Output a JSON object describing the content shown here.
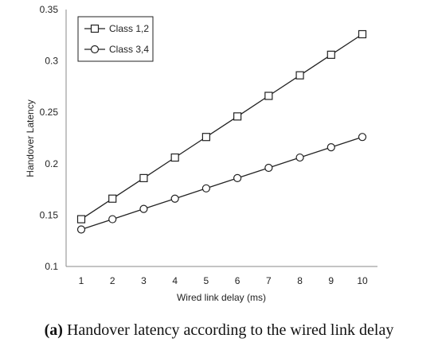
{
  "chart_data": {
    "type": "line",
    "categories": [
      "1",
      "2",
      "3",
      "4",
      "5",
      "6",
      "7",
      "8",
      "9",
      "10"
    ],
    "x": [
      1,
      2,
      3,
      4,
      5,
      6,
      7,
      8,
      9,
      10
    ],
    "series": [
      {
        "name": "Class 1,2",
        "marker": "square",
        "values": [
          0.146,
          0.166,
          0.186,
          0.206,
          0.226,
          0.246,
          0.266,
          0.286,
          0.306,
          0.326
        ]
      },
      {
        "name": "Class 3,4",
        "marker": "circle",
        "values": [
          0.136,
          0.146,
          0.156,
          0.166,
          0.176,
          0.186,
          0.196,
          0.206,
          0.216,
          0.226
        ]
      }
    ],
    "title": "",
    "xlabel": "Wired link delay (ms)",
    "ylabel": "Handover Latency",
    "ylim": [
      0.1,
      0.35
    ],
    "yticks": [
      "0.1",
      "0.15",
      "0.2",
      "0.25",
      "0.3",
      "0.35"
    ],
    "grid": false,
    "legend_position": "top-left",
    "line_color": "#222222"
  },
  "caption": {
    "label": "(a)",
    "text": "Handover latency according to the wired link delay"
  }
}
